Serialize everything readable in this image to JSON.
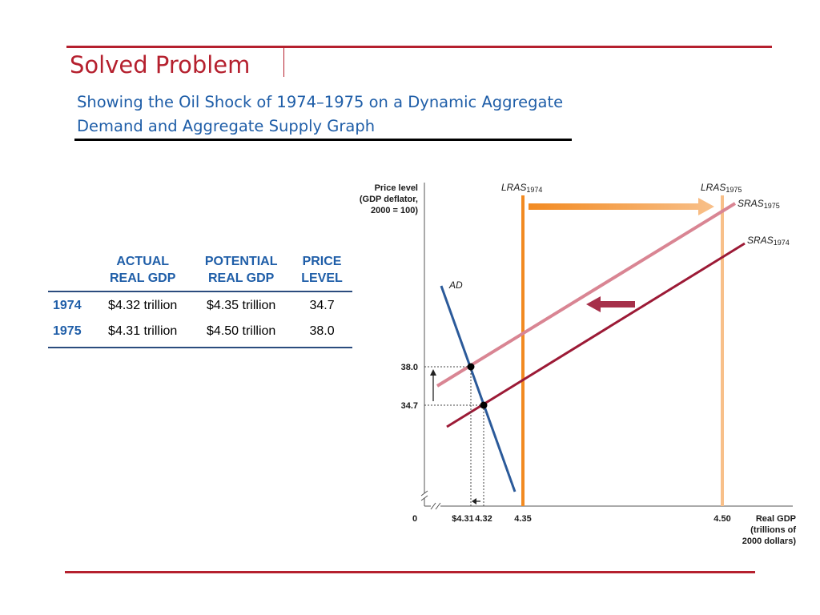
{
  "slide": {
    "title": "Solved Problem",
    "subtitle_line1": "Showing the Oil Shock of 1974–1975 on a Dynamic Aggregate",
    "subtitle_line2": "Demand and Aggregate Supply Graph"
  },
  "colors": {
    "accent_red": "#b5202e",
    "title_blue": "#1f5ea8",
    "sras1974": "#9c1a36",
    "sras1975": "#d98593",
    "lras1974": "#f28a21",
    "lras1975": "#f8c08a",
    "ad": "#2b5a9a"
  },
  "table": {
    "headers": [
      {
        "line1": "",
        "line2": ""
      },
      {
        "line1": "ACTUAL",
        "line2": "REAL GDP"
      },
      {
        "line1": "POTENTIAL",
        "line2": "REAL GDP"
      },
      {
        "line1": "PRICE",
        "line2": "LEVEL"
      }
    ],
    "rows": [
      {
        "year": "1974",
        "actual": "$4.32 trillion",
        "potential": "$4.35 trillion",
        "price": "34.7"
      },
      {
        "year": "1975",
        "actual": "$4.31 trillion",
        "potential": "$4.50 trillion",
        "price": "38.0"
      }
    ]
  },
  "chart_data": {
    "type": "line",
    "ylabel_lines": [
      "Price level",
      "(GDP deflator,",
      "2000 = 100)"
    ],
    "xlabel_lines": [
      "Real GDP",
      "(trillions of",
      "2000 dollars)"
    ],
    "origin_label": "0",
    "x_ticks": [
      {
        "label": "$4.31",
        "value": 4.31
      },
      {
        "label": "4.32",
        "value": 4.32
      },
      {
        "label": "4.35",
        "value": 4.35
      },
      {
        "label": "4.50",
        "value": 4.5
      }
    ],
    "y_ticks": [
      {
        "label": "38.0",
        "value": 38.0
      },
      {
        "label": "34.7",
        "value": 34.7
      }
    ],
    "equilibria": [
      {
        "x": 4.31,
        "y": 38.0
      },
      {
        "x": 4.32,
        "y": 34.7
      }
    ],
    "vertical_lines": [
      {
        "name": "LRAS",
        "sub": "1974",
        "x": 4.35
      },
      {
        "name": "LRAS",
        "sub": "1975",
        "x": 4.5
      }
    ],
    "curves": [
      {
        "name": "AD",
        "sub": ""
      },
      {
        "name": "SRAS",
        "sub": "1974"
      },
      {
        "name": "SRAS",
        "sub": "1975"
      }
    ],
    "axis_breaks": true,
    "arrows": [
      "LRAS shift right",
      "SRAS shift left",
      "price level up",
      "real GDP down"
    ]
  }
}
